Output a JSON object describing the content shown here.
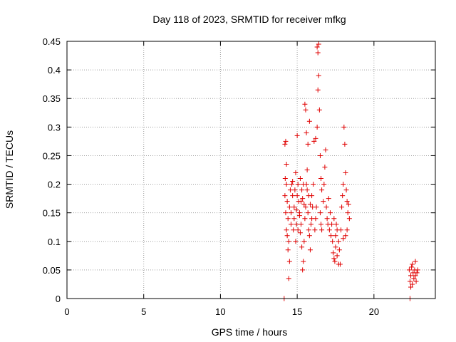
{
  "chart_data": {
    "type": "scatter",
    "title": "Day 118 of 2023, SRMTID for receiver mfkg",
    "xlabel": "GPS time / hours",
    "ylabel": "SRMTID / TECUs",
    "xlim": [
      0,
      24
    ],
    "ylim": [
      0,
      0.45
    ],
    "xticks": [
      0,
      5,
      10,
      15,
      20
    ],
    "xtick_labels": [
      "0",
      "5",
      "10",
      "15",
      "20"
    ],
    "yticks": [
      0,
      0.05,
      0.1,
      0.15,
      0.2,
      0.25,
      0.3,
      0.35,
      0.4,
      0.45
    ],
    "ytick_labels": [
      "0",
      "0.05",
      "0.1",
      "0.15",
      "0.2",
      "0.25",
      "0.3",
      "0.35",
      "0.4",
      "0.45"
    ],
    "grid": true,
    "marker": "+",
    "color": "#e00000",
    "series": [
      {
        "name": "SRMTID",
        "points": [
          [
            14.15,
            0.0
          ],
          [
            22.35,
            0.0
          ],
          [
            14.2,
            0.27
          ],
          [
            14.25,
            0.275
          ],
          [
            14.3,
            0.235
          ],
          [
            14.22,
            0.21
          ],
          [
            14.3,
            0.2
          ],
          [
            14.2,
            0.18
          ],
          [
            14.35,
            0.17
          ],
          [
            14.25,
            0.15
          ],
          [
            14.4,
            0.14
          ],
          [
            14.3,
            0.12
          ],
          [
            14.35,
            0.11
          ],
          [
            14.45,
            0.1
          ],
          [
            14.4,
            0.085
          ],
          [
            14.5,
            0.065
          ],
          [
            14.45,
            0.035
          ],
          [
            14.5,
            0.16
          ],
          [
            14.6,
            0.15
          ],
          [
            14.55,
            0.19
          ],
          [
            14.65,
            0.2
          ],
          [
            14.7,
            0.18
          ],
          [
            14.6,
            0.13
          ],
          [
            14.75,
            0.12
          ],
          [
            14.8,
            0.16
          ],
          [
            14.7,
            0.205
          ],
          [
            14.85,
            0.19
          ],
          [
            14.9,
            0.22
          ],
          [
            14.8,
            0.14
          ],
          [
            14.95,
            0.13
          ],
          [
            14.9,
            0.1
          ],
          [
            15.0,
            0.285
          ],
          [
            15.05,
            0.2
          ],
          [
            15.0,
            0.18
          ],
          [
            15.1,
            0.17
          ],
          [
            15.15,
            0.15
          ],
          [
            15.05,
            0.12
          ],
          [
            15.2,
            0.115
          ],
          [
            15.25,
            0.13
          ],
          [
            15.3,
            0.09
          ],
          [
            15.35,
            0.05
          ],
          [
            15.4,
            0.065
          ],
          [
            15.45,
            0.1
          ],
          [
            15.5,
            0.14
          ],
          [
            15.55,
            0.16
          ],
          [
            15.6,
            0.2
          ],
          [
            15.65,
            0.19
          ],
          [
            15.7,
            0.15
          ],
          [
            15.75,
            0.12
          ],
          [
            15.8,
            0.11
          ],
          [
            15.85,
            0.085
          ],
          [
            15.9,
            0.13
          ],
          [
            15.95,
            0.14
          ],
          [
            16.0,
            0.16
          ],
          [
            15.5,
            0.34
          ],
          [
            15.55,
            0.33
          ],
          [
            15.6,
            0.29
          ],
          [
            15.7,
            0.27
          ],
          [
            15.8,
            0.31
          ],
          [
            16.1,
            0.275
          ],
          [
            16.2,
            0.28
          ],
          [
            16.3,
            0.3
          ],
          [
            16.35,
            0.365
          ],
          [
            16.4,
            0.39
          ],
          [
            16.45,
            0.33
          ],
          [
            16.3,
            0.44
          ],
          [
            16.35,
            0.43
          ],
          [
            16.4,
            0.445
          ],
          [
            16.5,
            0.25
          ],
          [
            16.55,
            0.21
          ],
          [
            16.6,
            0.19
          ],
          [
            16.7,
            0.17
          ],
          [
            16.75,
            0.2
          ],
          [
            16.8,
            0.23
          ],
          [
            16.85,
            0.26
          ],
          [
            16.9,
            0.16
          ],
          [
            16.95,
            0.14
          ],
          [
            17.0,
            0.13
          ],
          [
            17.1,
            0.12
          ],
          [
            17.2,
            0.11
          ],
          [
            17.3,
            0.1
          ],
          [
            17.35,
            0.08
          ],
          [
            17.4,
            0.07
          ],
          [
            17.45,
            0.065
          ],
          [
            17.5,
            0.09
          ],
          [
            17.55,
            0.13
          ],
          [
            17.6,
            0.12
          ],
          [
            17.7,
            0.1
          ],
          [
            17.75,
            0.085
          ],
          [
            17.8,
            0.06
          ],
          [
            17.85,
            0.12
          ],
          [
            17.9,
            0.16
          ],
          [
            17.95,
            0.18
          ],
          [
            18.0,
            0.2
          ],
          [
            18.05,
            0.3
          ],
          [
            18.1,
            0.27
          ],
          [
            18.15,
            0.22
          ],
          [
            18.2,
            0.19
          ],
          [
            18.25,
            0.17
          ],
          [
            18.3,
            0.15
          ],
          [
            18.35,
            0.165
          ],
          [
            18.4,
            0.14
          ],
          [
            16.15,
            0.12
          ],
          [
            16.2,
            0.14
          ],
          [
            16.25,
            0.16
          ],
          [
            16.5,
            0.15
          ],
          [
            16.55,
            0.13
          ],
          [
            16.6,
            0.12
          ],
          [
            15.2,
            0.21
          ],
          [
            15.3,
            0.19
          ],
          [
            15.35,
            0.175
          ],
          [
            15.45,
            0.165
          ],
          [
            14.95,
            0.155
          ],
          [
            15.15,
            0.145
          ],
          [
            15.25,
            0.17
          ],
          [
            15.4,
            0.2
          ],
          [
            15.65,
            0.225
          ],
          [
            15.75,
            0.18
          ],
          [
            15.85,
            0.165
          ],
          [
            15.95,
            0.18
          ],
          [
            16.05,
            0.2
          ],
          [
            17.05,
            0.175
          ],
          [
            17.15,
            0.15
          ],
          [
            17.25,
            0.13
          ],
          [
            17.4,
            0.14
          ],
          [
            17.5,
            0.11
          ],
          [
            17.6,
            0.075
          ],
          [
            17.7,
            0.06
          ],
          [
            18.15,
            0.11
          ],
          [
            18.25,
            0.12
          ],
          [
            18.0,
            0.105
          ],
          [
            22.3,
            0.05
          ],
          [
            22.35,
            0.03
          ],
          [
            22.4,
            0.04
          ],
          [
            22.45,
            0.055
          ],
          [
            22.5,
            0.025
          ],
          [
            22.55,
            0.045
          ],
          [
            22.6,
            0.035
          ],
          [
            22.65,
            0.05
          ],
          [
            22.7,
            0.04
          ],
          [
            22.75,
            0.03
          ],
          [
            22.8,
            0.045
          ],
          [
            22.5,
            0.06
          ],
          [
            22.7,
            0.065
          ],
          [
            22.4,
            0.02
          ],
          [
            22.85,
            0.05
          ]
        ]
      }
    ]
  }
}
